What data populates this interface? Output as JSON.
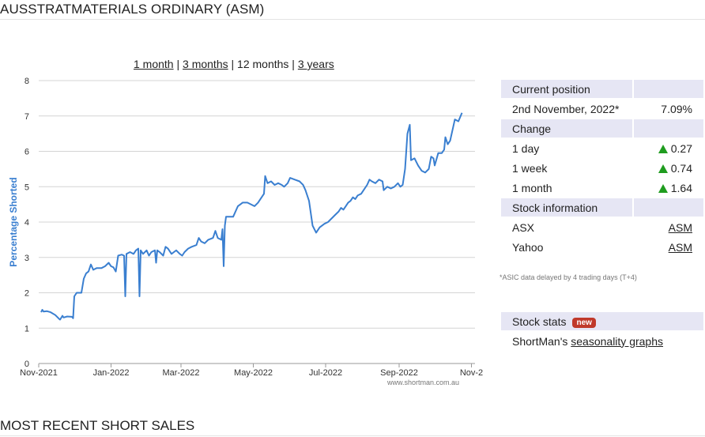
{
  "page_title": "AUSSTRATMATERIALS ORDINARY (ASM)",
  "range_links": [
    "1 month",
    "3 months",
    "12 months",
    "3 years"
  ],
  "range_separator": " | ",
  "watermark": "www.shortman.com.au",
  "panel": {
    "current_position_header": "Current position",
    "current_date": "2nd November, 2022*",
    "current_value": "7.09%",
    "change_header": "Change",
    "changes": [
      {
        "label": "1 day",
        "value": "0.27"
      },
      {
        "label": "1 week",
        "value": "0.74"
      },
      {
        "label": "1 month",
        "value": "1.64"
      }
    ],
    "stock_info_header": "Stock information",
    "links": [
      {
        "label": "ASX",
        "value": "ASM"
      },
      {
        "label": "Yahoo",
        "value": "ASM"
      }
    ]
  },
  "footnote": "*ASIC data delayed by 4 trading days (T+4)",
  "stats": {
    "header": "Stock stats",
    "badge": "new",
    "prefix": "ShortMan's ",
    "link": "seasonality graphs"
  },
  "section_title": "MOST RECENT SHORT SALES",
  "colors": {
    "line": "#3a7fd0",
    "grid": "#d4d4d4",
    "panel_header": "#e6e6f4",
    "up_arrow": "#1f9c1f",
    "badge": "#c0392b"
  },
  "chart_data": {
    "type": "line",
    "title": "",
    "xlabel": "",
    "ylabel": "Percentage Shorted",
    "xlim": [
      "2021-11-01",
      "2022-11-04"
    ],
    "ylim": [
      0,
      8
    ],
    "yticks": [
      0,
      1,
      2,
      3,
      4,
      5,
      6,
      7,
      8
    ],
    "xticks": [
      {
        "date": "2021-11-01",
        "label": "Nov-2021"
      },
      {
        "date": "2022-01-01",
        "label": "Jan-2022"
      },
      {
        "date": "2022-03-01",
        "label": "Mar-2022"
      },
      {
        "date": "2022-05-01",
        "label": "May-2022"
      },
      {
        "date": "2022-07-01",
        "label": "Jul-2022"
      },
      {
        "date": "2022-09-01",
        "label": "Sep-2022"
      },
      {
        "date": "2022-11-01",
        "label": "Nov-2"
      }
    ],
    "grid": true,
    "series": [
      {
        "points": [
          [
            "2021-11-03",
            1.45
          ],
          [
            "2021-11-04",
            1.52
          ],
          [
            "2021-11-05",
            1.47
          ],
          [
            "2021-11-08",
            1.48
          ],
          [
            "2021-11-11",
            1.45
          ],
          [
            "2021-11-15",
            1.37
          ],
          [
            "2021-11-18",
            1.27
          ],
          [
            "2021-11-19",
            1.24
          ],
          [
            "2021-11-21",
            1.35
          ],
          [
            "2021-11-22",
            1.3
          ],
          [
            "2021-11-25",
            1.33
          ],
          [
            "2021-11-29",
            1.32
          ],
          [
            "2021-11-30",
            1.28
          ],
          [
            "2021-12-01",
            1.9
          ],
          [
            "2021-12-03",
            2.0
          ],
          [
            "2021-12-07",
            2.0
          ],
          [
            "2021-12-09",
            2.4
          ],
          [
            "2021-12-11",
            2.55
          ],
          [
            "2021-12-13",
            2.6
          ],
          [
            "2021-12-15",
            2.8
          ],
          [
            "2021-12-17",
            2.65
          ],
          [
            "2021-12-20",
            2.7
          ],
          [
            "2021-12-24",
            2.7
          ],
          [
            "2021-12-27",
            2.75
          ],
          [
            "2021-12-30",
            2.85
          ],
          [
            "2022-01-01",
            2.75
          ],
          [
            "2022-01-03",
            2.72
          ],
          [
            "2022-01-05",
            2.6
          ],
          [
            "2022-01-07",
            3.05
          ],
          [
            "2022-01-10",
            3.08
          ],
          [
            "2022-01-12",
            3.05
          ],
          [
            "2022-01-13",
            1.9
          ],
          [
            "2022-01-14",
            3.1
          ],
          [
            "2022-01-17",
            3.15
          ],
          [
            "2022-01-20",
            3.1
          ],
          [
            "2022-01-22",
            3.2
          ],
          [
            "2022-01-24",
            3.25
          ],
          [
            "2022-01-25",
            1.9
          ],
          [
            "2022-01-26",
            3.2
          ],
          [
            "2022-01-28",
            3.1
          ],
          [
            "2022-01-31",
            3.2
          ],
          [
            "2022-02-02",
            3.05
          ],
          [
            "2022-02-04",
            3.15
          ],
          [
            "2022-02-07",
            3.2
          ],
          [
            "2022-02-08",
            2.85
          ],
          [
            "2022-02-09",
            3.2
          ],
          [
            "2022-02-11",
            3.15
          ],
          [
            "2022-02-14",
            3.05
          ],
          [
            "2022-02-16",
            3.3
          ],
          [
            "2022-02-18",
            3.25
          ],
          [
            "2022-02-21",
            3.1
          ],
          [
            "2022-02-23",
            3.15
          ],
          [
            "2022-02-25",
            3.2
          ],
          [
            "2022-02-28",
            3.1
          ],
          [
            "2022-03-02",
            3.05
          ],
          [
            "2022-03-04",
            3.15
          ],
          [
            "2022-03-07",
            3.25
          ],
          [
            "2022-03-10",
            3.3
          ],
          [
            "2022-03-14",
            3.35
          ],
          [
            "2022-03-16",
            3.55
          ],
          [
            "2022-03-18",
            3.45
          ],
          [
            "2022-03-21",
            3.4
          ],
          [
            "2022-03-24",
            3.5
          ],
          [
            "2022-03-28",
            3.55
          ],
          [
            "2022-03-30",
            3.75
          ],
          [
            "2022-04-01",
            3.55
          ],
          [
            "2022-04-04",
            3.5
          ],
          [
            "2022-04-05",
            3.8
          ],
          [
            "2022-04-06",
            2.75
          ],
          [
            "2022-04-07",
            3.9
          ],
          [
            "2022-04-08",
            4.15
          ],
          [
            "2022-04-11",
            4.15
          ],
          [
            "2022-04-14",
            4.15
          ],
          [
            "2022-04-18",
            4.45
          ],
          [
            "2022-04-22",
            4.55
          ],
          [
            "2022-04-26",
            4.55
          ],
          [
            "2022-04-29",
            4.5
          ],
          [
            "2022-05-02",
            4.45
          ],
          [
            "2022-05-05",
            4.55
          ],
          [
            "2022-05-08",
            4.7
          ],
          [
            "2022-05-10",
            4.8
          ],
          [
            "2022-05-11",
            5.3
          ],
          [
            "2022-05-13",
            5.1
          ],
          [
            "2022-05-16",
            5.15
          ],
          [
            "2022-05-19",
            5.05
          ],
          [
            "2022-05-22",
            5.1
          ],
          [
            "2022-05-25",
            5.05
          ],
          [
            "2022-05-27",
            5.0
          ],
          [
            "2022-05-30",
            5.1
          ],
          [
            "2022-06-01",
            5.25
          ],
          [
            "2022-06-05",
            5.2
          ],
          [
            "2022-06-09",
            5.15
          ],
          [
            "2022-06-12",
            5.05
          ],
          [
            "2022-06-14",
            4.9
          ],
          [
            "2022-06-17",
            4.6
          ],
          [
            "2022-06-20",
            3.9
          ],
          [
            "2022-06-23",
            3.7
          ],
          [
            "2022-06-26",
            3.85
          ],
          [
            "2022-06-30",
            3.95
          ],
          [
            "2022-07-03",
            4.0
          ],
          [
            "2022-07-06",
            4.1
          ],
          [
            "2022-07-09",
            4.2
          ],
          [
            "2022-07-12",
            4.3
          ],
          [
            "2022-07-14",
            4.4
          ],
          [
            "2022-07-16",
            4.35
          ],
          [
            "2022-07-18",
            4.45
          ],
          [
            "2022-07-20",
            4.55
          ],
          [
            "2022-07-22",
            4.6
          ],
          [
            "2022-07-24",
            4.7
          ],
          [
            "2022-07-26",
            4.65
          ],
          [
            "2022-07-28",
            4.75
          ],
          [
            "2022-07-31",
            4.8
          ],
          [
            "2022-08-02",
            4.9
          ],
          [
            "2022-08-05",
            5.05
          ],
          [
            "2022-08-07",
            5.2
          ],
          [
            "2022-08-09",
            5.15
          ],
          [
            "2022-08-12",
            5.1
          ],
          [
            "2022-08-15",
            5.2
          ],
          [
            "2022-08-18",
            5.15
          ],
          [
            "2022-08-19",
            4.9
          ],
          [
            "2022-08-22",
            5.0
          ],
          [
            "2022-08-25",
            4.95
          ],
          [
            "2022-08-28",
            5.0
          ],
          [
            "2022-08-31",
            5.1
          ],
          [
            "2022-09-02",
            5.0
          ],
          [
            "2022-09-04",
            5.05
          ],
          [
            "2022-09-06",
            5.5
          ],
          [
            "2022-09-08",
            6.5
          ],
          [
            "2022-09-10",
            6.75
          ],
          [
            "2022-09-11",
            5.75
          ],
          [
            "2022-09-14",
            5.8
          ],
          [
            "2022-09-17",
            5.6
          ],
          [
            "2022-09-20",
            5.45
          ],
          [
            "2022-09-23",
            5.4
          ],
          [
            "2022-09-26",
            5.5
          ],
          [
            "2022-09-28",
            5.85
          ],
          [
            "2022-09-30",
            5.8
          ],
          [
            "2022-10-01",
            5.6
          ],
          [
            "2022-10-04",
            5.95
          ],
          [
            "2022-10-07",
            5.95
          ],
          [
            "2022-10-09",
            6.05
          ],
          [
            "2022-10-10",
            6.4
          ],
          [
            "2022-10-12",
            6.2
          ],
          [
            "2022-10-14",
            6.3
          ],
          [
            "2022-10-16",
            6.6
          ],
          [
            "2022-10-18",
            6.9
          ],
          [
            "2022-10-21",
            6.85
          ],
          [
            "2022-10-24",
            7.09
          ]
        ]
      }
    ]
  }
}
